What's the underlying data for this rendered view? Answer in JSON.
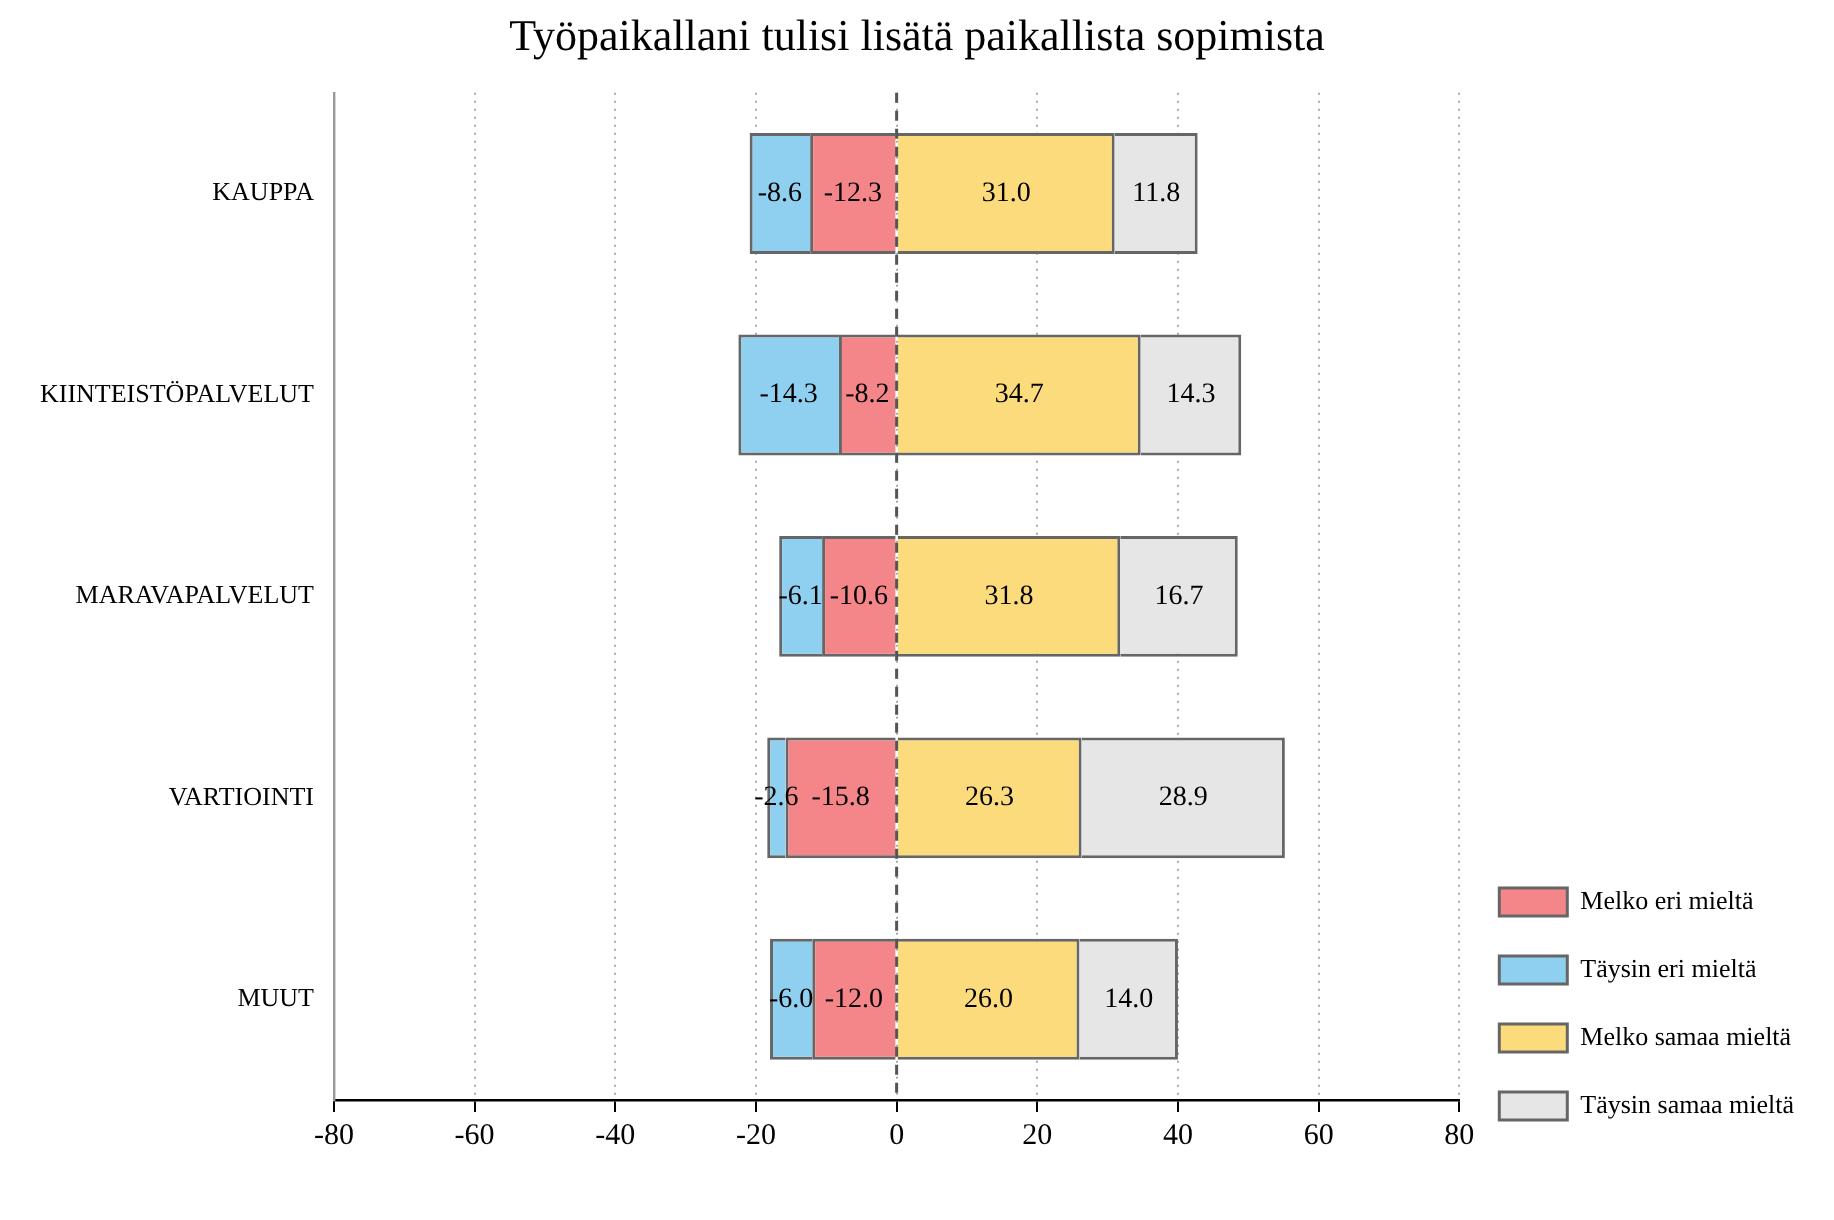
{
  "chart_data": {
    "type": "bar",
    "orientation": "horizontal",
    "stacked": true,
    "title": "Työpaikallani tulisi lisätä paikallista sopimista",
    "categories": [
      "KAUPPA",
      "KIINTEISTÖPALVELUT",
      "MARAVAPALVELUT",
      "VARTIOINTI",
      "MUUT"
    ],
    "series": [
      {
        "name": "Melko eri mieltä",
        "color": "#f4868a",
        "values": [
          -12.3,
          -8.2,
          -10.6,
          -15.8,
          -12.0
        ],
        "value_labels": [
          "-12.3",
          "-8.2",
          "-10.6",
          "-15.8",
          "-12.0"
        ]
      },
      {
        "name": "Täysin eri mieltä",
        "color": "#8fd0f0",
        "values": [
          -8.6,
          -14.3,
          -6.1,
          -2.6,
          -6.0
        ],
        "value_labels": [
          "-8.6",
          "-14.3",
          "-6.1",
          "-2.6",
          "-6.0"
        ]
      },
      {
        "name": "Melko samaa mieltä",
        "color": "#fcdb7c",
        "values": [
          31.0,
          34.7,
          31.8,
          26.3,
          26.0
        ],
        "value_labels": [
          "31.0",
          "34.7",
          "31.8",
          "26.3",
          "26.0"
        ]
      },
      {
        "name": "Täysin samaa mieltä",
        "color": "#e6e6e6",
        "values": [
          11.8,
          14.3,
          16.7,
          28.9,
          14.0
        ],
        "value_labels": [
          "11.8",
          "14.3",
          "16.7",
          "28.9",
          "14.0"
        ]
      }
    ],
    "xlim": [
      -80,
      80
    ],
    "xticks": [
      -80,
      -60,
      -40,
      -20,
      0,
      20,
      40,
      60,
      80
    ],
    "grid": "x",
    "legend": "bottom right",
    "ref_lines": [
      {
        "axis": "x",
        "value": 0,
        "line_style": "dashed",
        "color": "#555555"
      }
    ]
  }
}
